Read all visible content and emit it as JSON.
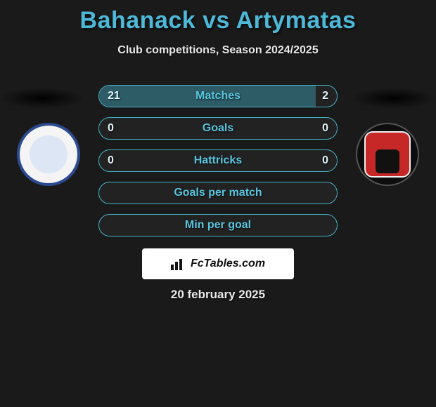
{
  "title": "Bahanack vs Artymatas",
  "subtitle": "Club competitions, Season 2024/2025",
  "date": "20 february 2025",
  "brand": "FcTables.com",
  "colors": {
    "background": "#1a1a1a",
    "accent": "#4db8d8",
    "bar_border": "#46b2c9",
    "bar_fill": "#2d5b66",
    "text_light": "#e8e8e8"
  },
  "bars": [
    {
      "label": "Matches",
      "left": "21",
      "right": "2",
      "fill_pct": 91
    },
    {
      "label": "Goals",
      "left": "0",
      "right": "0",
      "fill_pct": 0
    },
    {
      "label": "Hattricks",
      "left": "0",
      "right": "0",
      "fill_pct": 0
    },
    {
      "label": "Goals per match",
      "left": "",
      "right": "",
      "fill_pct": 0
    },
    {
      "label": "Min per goal",
      "left": "",
      "right": "",
      "fill_pct": 0
    }
  ],
  "badges": {
    "left": {
      "primary": "#2b4a8f",
      "bg": "#f4f4f4"
    },
    "right": {
      "primary": "#c62828",
      "bg": "#0d0d0d"
    }
  }
}
